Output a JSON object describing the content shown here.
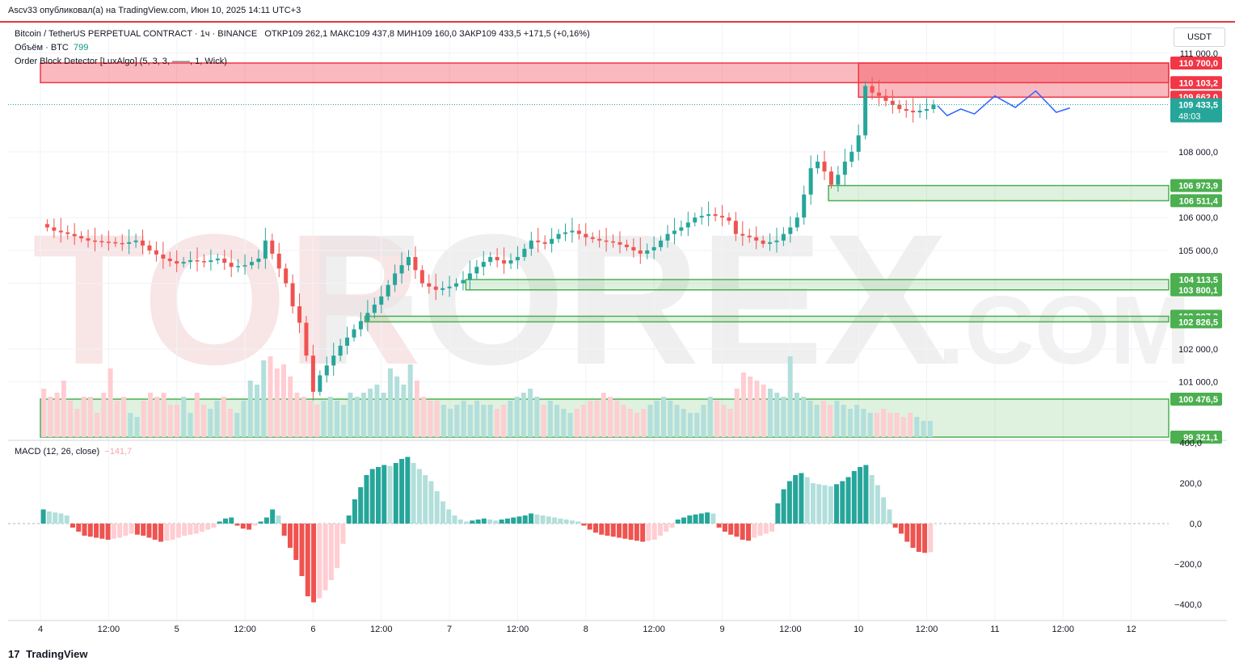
{
  "header": {
    "publisher": "Ascv33 опубликовал(а) на TradingView.com, Июн 10, 2025 14:11 UTC+3"
  },
  "legend": {
    "symbol": "Bitcoin / TetherUS PERPETUAL CONTRACT · 1ч · BINANCE",
    "ohlc": "ОТКР109 262,1  МАКС109 437,8  МИН109 160,0  ЗАКР109 433,5  +171,5 (+0,16%)",
    "volume_label": "Объём · BTC",
    "volume_value": "799",
    "indicator": "Order Block Detector [LuxAlgo] (5, 3, 3, ——, 1, Wick)",
    "macd_label": "MACD (12, 26, close)",
    "macd_value": "−141,7"
  },
  "currency_button": "USDT",
  "watermark": {
    "text_a": "TOR",
    "text_b": "FOREX",
    "text_c": ".COM"
  },
  "footer": {
    "brand": "TradingView",
    "logo": "17"
  },
  "colors": {
    "up": "#26a69a",
    "down": "#ef5350",
    "up_light": "#b2dfdb",
    "down_light": "#ffcdd2",
    "forecast": "#2962ff",
    "bear_zone": "#f23645",
    "bull_zone": "#4caf50"
  },
  "chart_data": {
    "type": "candlestick",
    "interval": "1h",
    "price_axis": {
      "ylim": [
        99321.1,
        111000
      ],
      "ticks": [
        101000,
        102000,
        104000,
        105000,
        106000,
        108000,
        111000
      ],
      "tick_labels": [
        "101 000,0",
        "102 000,0",
        "104 000,0",
        "105 000,0",
        "106 000,0",
        "108 000,0",
        "111 000,0"
      ]
    },
    "time_axis": {
      "labels": [
        "4",
        "12:00",
        "5",
        "12:00",
        "6",
        "12:00",
        "7",
        "12:00",
        "8",
        "12:00",
        "9",
        "12:00",
        "10",
        "12:00",
        "11",
        "12:00",
        "12"
      ]
    },
    "current_price": {
      "value": 109433.5,
      "label": "109 433,5",
      "countdown": "48:03"
    },
    "bearish_order_blocks": [
      {
        "top": 110700.0,
        "bottom": 110103.2,
        "top_label": "110 700,0",
        "bottom_label": "110 103,2",
        "start_day": 0
      },
      {
        "top": 110700.0,
        "bottom": 109662.0,
        "top_label": "",
        "bottom_label": "109 662,0",
        "start_day": 6.0
      }
    ],
    "bullish_order_blocks": [
      {
        "top": 106973.9,
        "bottom": 106511.4,
        "top_label": "106 973,9",
        "bottom_label": "106 511,4",
        "start_day": 5.78
      },
      {
        "top": 104113.5,
        "bottom": 103800.1,
        "top_label": "104 113,5",
        "bottom_label": "103 800,1",
        "start_day": 3.12
      },
      {
        "top": 102997.3,
        "bottom": 102826.5,
        "top_label": "102 997,3",
        "bottom_label": "102 826,5",
        "start_day": 2.38
      },
      {
        "top": 100476.5,
        "bottom": 99321.1,
        "top_label": "100 476,5",
        "bottom_label": "99 321,1",
        "start_day": 0
      }
    ],
    "close_path": [
      [
        0,
        105800
      ],
      [
        0.1,
        105600
      ],
      [
        0.2,
        105500
      ],
      [
        0.35,
        105300
      ],
      [
        0.5,
        105250
      ],
      [
        0.6,
        105200
      ],
      [
        0.7,
        105300
      ],
      [
        0.8,
        105000
      ],
      [
        0.9,
        104750
      ],
      [
        1.0,
        104600
      ],
      [
        1.1,
        104700
      ],
      [
        1.2,
        104650
      ],
      [
        1.3,
        104750
      ],
      [
        1.4,
        104500
      ],
      [
        1.5,
        104550
      ],
      [
        1.6,
        104750
      ],
      [
        1.65,
        105300
      ],
      [
        1.7,
        104900
      ],
      [
        1.8,
        104000
      ],
      [
        1.85,
        103300
      ],
      [
        1.9,
        102800
      ],
      [
        1.95,
        101800
      ],
      [
        2.0,
        100700
      ],
      [
        2.05,
        101200
      ],
      [
        2.1,
        101500
      ],
      [
        2.2,
        102100
      ],
      [
        2.3,
        102600
      ],
      [
        2.4,
        103100
      ],
      [
        2.5,
        103600
      ],
      [
        2.6,
        104300
      ],
      [
        2.7,
        104800
      ],
      [
        2.8,
        104000
      ],
      [
        2.9,
        103800
      ],
      [
        3.0,
        103900
      ],
      [
        3.1,
        104100
      ],
      [
        3.2,
        104500
      ],
      [
        3.3,
        104800
      ],
      [
        3.4,
        104600
      ],
      [
        3.5,
        104800
      ],
      [
        3.6,
        105300
      ],
      [
        3.7,
        105200
      ],
      [
        3.8,
        105500
      ],
      [
        3.9,
        105600
      ],
      [
        4.0,
        105400
      ],
      [
        4.1,
        105300
      ],
      [
        4.2,
        105250
      ],
      [
        4.3,
        105100
      ],
      [
        4.4,
        104900
      ],
      [
        4.5,
        105100
      ],
      [
        4.6,
        105500
      ],
      [
        4.7,
        105700
      ],
      [
        4.8,
        106000
      ],
      [
        4.9,
        106100
      ],
      [
        5.0,
        106000
      ],
      [
        5.05,
        105900
      ],
      [
        5.1,
        105500
      ],
      [
        5.2,
        105400
      ],
      [
        5.3,
        105200
      ],
      [
        5.4,
        105300
      ],
      [
        5.5,
        105700
      ],
      [
        5.55,
        106000
      ],
      [
        5.6,
        106700
      ],
      [
        5.65,
        107500
      ],
      [
        5.7,
        107700
      ],
      [
        5.75,
        107400
      ],
      [
        5.8,
        107000
      ],
      [
        5.85,
        107300
      ],
      [
        5.9,
        107700
      ],
      [
        5.95,
        108000
      ],
      [
        6.0,
        108500
      ],
      [
        6.02,
        109400
      ],
      [
        6.05,
        110000
      ],
      [
        6.1,
        109800
      ],
      [
        6.15,
        109700
      ],
      [
        6.2,
        109550
      ],
      [
        6.3,
        109300
      ],
      [
        6.4,
        109200
      ],
      [
        6.5,
        109300
      ],
      [
        6.55,
        109433.5
      ]
    ],
    "forecast_path": [
      [
        6.58,
        109400
      ],
      [
        6.65,
        109100
      ],
      [
        6.75,
        109300
      ],
      [
        6.85,
        109150
      ],
      [
        7.0,
        109700
      ],
      [
        7.15,
        109350
      ],
      [
        7.3,
        109850
      ],
      [
        7.45,
        109200
      ],
      [
        7.55,
        109333
      ]
    ],
    "volume": {
      "values": [
        0.6,
        0.5,
        0.55,
        0.7,
        0.45,
        0.35,
        0.5,
        0.5,
        0.3,
        0.55,
        0.85,
        0.45,
        0.5,
        0.3,
        0.25,
        0.45,
        0.55,
        0.5,
        0.55,
        0.4,
        0.4,
        0.5,
        0.3,
        0.55,
        0.4,
        0.35,
        0.45,
        0.5,
        0.35,
        0.3,
        0.45,
        0.7,
        0.65,
        0.95,
        1.0,
        0.85,
        0.9,
        0.75,
        0.55,
        0.5,
        0.45,
        0.4,
        0.45,
        0.5,
        0.45,
        0.4,
        0.55,
        0.5,
        0.55,
        0.6,
        0.65,
        0.55,
        0.85,
        0.75,
        0.65,
        0.9,
        0.7,
        0.5,
        0.45,
        0.45,
        0.4,
        0.35,
        0.4,
        0.45,
        0.4,
        0.45,
        0.4,
        0.4,
        0.35,
        0.4,
        0.45,
        0.5,
        0.55,
        0.6,
        0.5,
        0.4,
        0.45,
        0.4,
        0.35,
        0.3,
        0.35,
        0.4,
        0.45,
        0.45,
        0.55,
        0.5,
        0.45,
        0.4,
        0.35,
        0.3,
        0.35,
        0.4,
        0.45,
        0.5,
        0.45,
        0.4,
        0.35,
        0.3,
        0.3,
        0.4,
        0.5,
        0.45,
        0.4,
        0.35,
        0.6,
        0.8,
        0.75,
        0.7,
        0.65,
        0.6,
        0.55,
        0.5,
        1.0,
        0.55,
        0.5,
        0.45,
        0.4,
        0.45,
        0.4,
        0.45,
        0.4,
        0.35,
        0.4,
        0.35,
        0.3,
        0.3,
        0.35,
        0.3,
        0.3,
        0.25,
        0.3,
        0.25,
        0.2,
        0.2
      ]
    },
    "macd": {
      "ylim": [
        -400,
        400
      ],
      "ticks": [
        400,
        200,
        0,
        -200,
        -400
      ],
      "tick_labels": [
        "400,0",
        "200,0",
        "0,0",
        "−200,0",
        "−400,0"
      ],
      "histogram": [
        70,
        60,
        55,
        50,
        40,
        -20,
        -40,
        -60,
        -65,
        -70,
        -75,
        -80,
        -75,
        -70,
        -60,
        -50,
        -55,
        -60,
        -70,
        -80,
        -90,
        -85,
        -80,
        -70,
        -60,
        -55,
        -50,
        -40,
        -30,
        -20,
        10,
        25,
        30,
        -10,
        -25,
        -30,
        -10,
        10,
        30,
        70,
        40,
        -60,
        -120,
        -180,
        -260,
        -360,
        -390,
        -370,
        -330,
        -280,
        -220,
        -100,
        40,
        120,
        180,
        240,
        270,
        280,
        290,
        285,
        300,
        320,
        330,
        300,
        270,
        240,
        210,
        160,
        110,
        70,
        40,
        20,
        10,
        15,
        20,
        25,
        20,
        15,
        20,
        25,
        30,
        35,
        40,
        50,
        45,
        40,
        35,
        30,
        25,
        20,
        15,
        10,
        -10,
        -30,
        -45,
        -55,
        -60,
        -65,
        -70,
        -75,
        -80,
        -85,
        -90,
        -85,
        -80,
        -60,
        -40,
        -20,
        20,
        30,
        40,
        45,
        50,
        55,
        50,
        -20,
        -40,
        -55,
        -65,
        -80,
        -85,
        -70,
        -60,
        -50,
        -40,
        100,
        170,
        210,
        240,
        250,
        230,
        200,
        195,
        190,
        185,
        195,
        210,
        230,
        260,
        280,
        290,
        240,
        190,
        130,
        70,
        -20,
        -50,
        -90,
        -120,
        -140,
        -145,
        -141.7
      ]
    }
  }
}
